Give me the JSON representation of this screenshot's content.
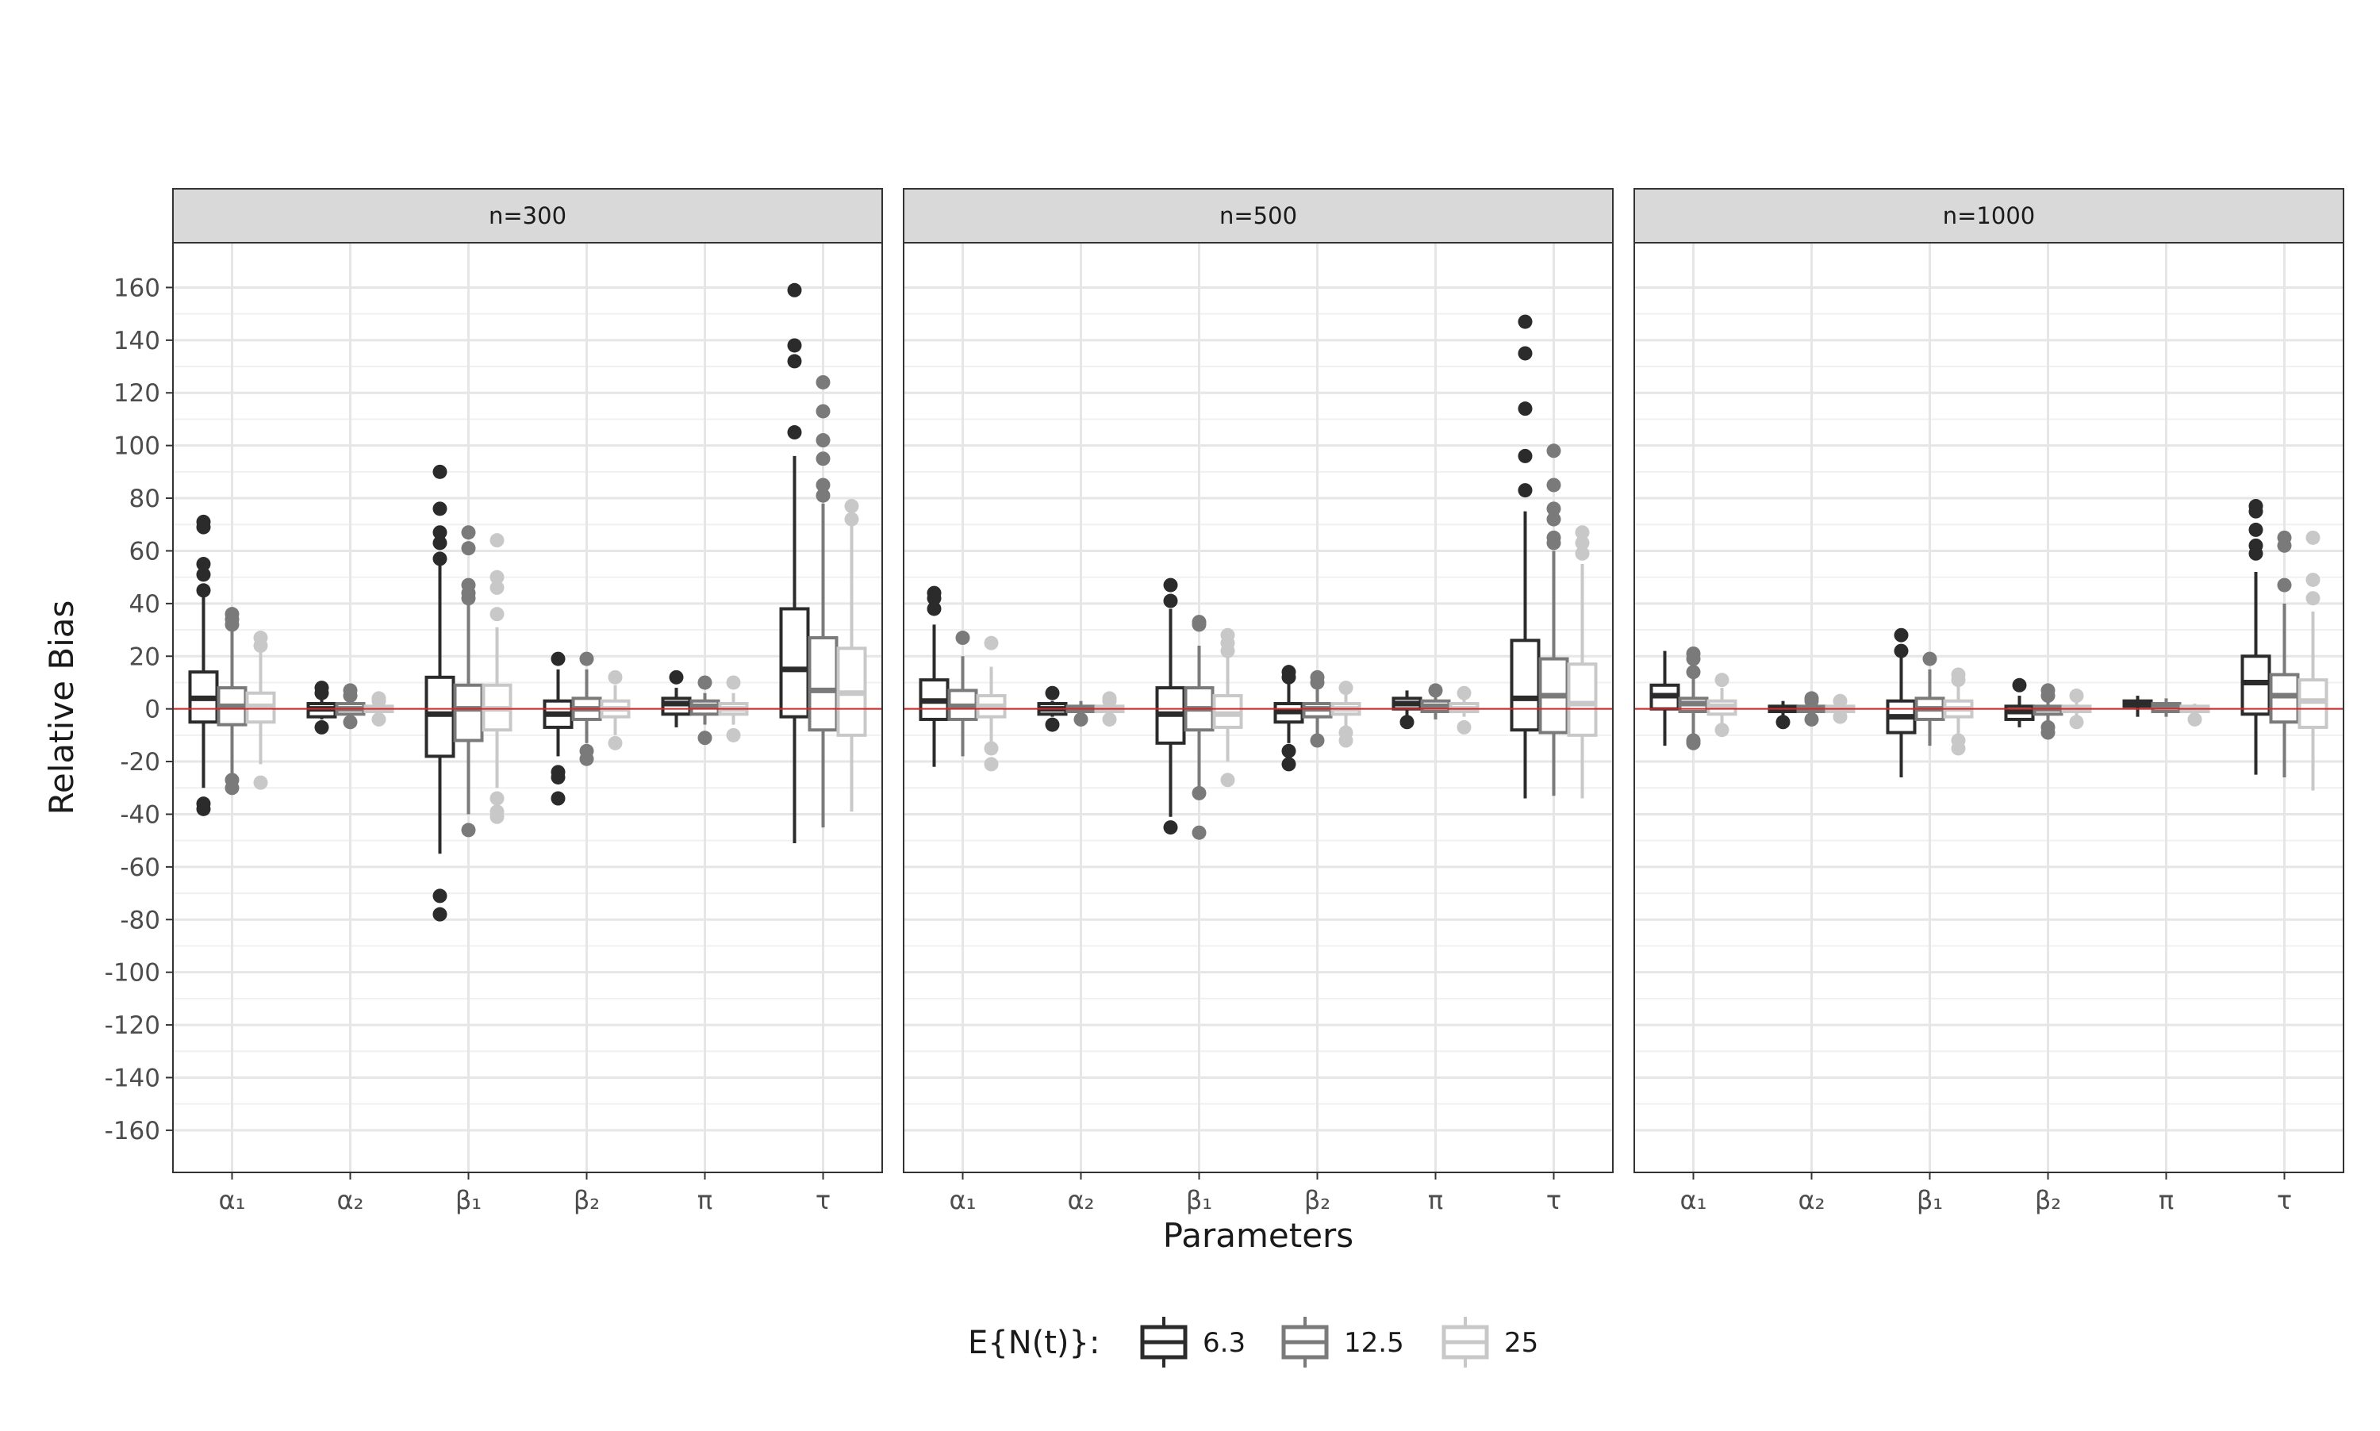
{
  "chart_data": {
    "type": "boxplot",
    "facet_variable": "n",
    "facets": [
      "n=300",
      "n=500",
      "n=1000"
    ],
    "xlabel": "Parameters",
    "ylabel": "Relative Bias",
    "categories": [
      "α₁",
      "α₂",
      "β₁",
      "β₂",
      "π",
      "τ"
    ],
    "ylim": [
      -176,
      177
    ],
    "yticks": [
      -160,
      -140,
      -120,
      -100,
      -80,
      -60,
      -40,
      -20,
      0,
      20,
      40,
      60,
      80,
      100,
      120,
      140,
      160
    ],
    "grid": true,
    "reference_line": {
      "y": 0,
      "color": "#d62728"
    },
    "legend": {
      "title": "E{N(t)}:",
      "position": "bottom",
      "entries": [
        {
          "label": "6.3",
          "color": "#2b2b2b"
        },
        {
          "label": "12.5",
          "color": "#7a7a7a"
        },
        {
          "label": "25",
          "color": "#c8c8c8"
        }
      ]
    },
    "series_order": [
      "6.3",
      "12.5",
      "25"
    ],
    "panels": [
      {
        "facet": "n=300",
        "boxes": [
          {
            "param": "α₁",
            "group": "6.3",
            "min": -30,
            "q1": -5,
            "median": 4,
            "q3": 14,
            "max": 43,
            "outliers": [
              71,
              69,
              55,
              51,
              45,
              -36,
              -38
            ]
          },
          {
            "param": "α₁",
            "group": "12.5",
            "min": -25,
            "q1": -6,
            "median": 1,
            "q3": 8,
            "max": 30,
            "outliers": [
              36,
              34,
              32,
              -27,
              -30
            ]
          },
          {
            "param": "α₁",
            "group": "25",
            "min": -21,
            "q1": -5,
            "median": 1,
            "q3": 6,
            "max": 22,
            "outliers": [
              27,
              24,
              -28
            ]
          },
          {
            "param": "α₂",
            "group": "6.3",
            "min": -4,
            "q1": -3,
            "median": 0,
            "q3": 2,
            "max": 5,
            "outliers": [
              8,
              6,
              -7
            ]
          },
          {
            "param": "α₂",
            "group": "12.5",
            "min": -3,
            "q1": -2,
            "median": 0,
            "q3": 2,
            "max": 4,
            "outliers": [
              7,
              5,
              -5
            ]
          },
          {
            "param": "α₂",
            "group": "25",
            "min": -2,
            "q1": -1,
            "median": 0,
            "q3": 1,
            "max": 2,
            "outliers": [
              4,
              3,
              -4
            ]
          },
          {
            "param": "β₁",
            "group": "6.3",
            "min": -55,
            "q1": -18,
            "median": -2,
            "q3": 12,
            "max": 55,
            "outliers": [
              90,
              76,
              67,
              63,
              57,
              -71,
              -78
            ]
          },
          {
            "param": "β₁",
            "group": "12.5",
            "min": -40,
            "q1": -12,
            "median": 0,
            "q3": 9,
            "max": 40,
            "outliers": [
              67,
              61,
              47,
              44,
              42,
              -46
            ]
          },
          {
            "param": "β₁",
            "group": "25",
            "min": -30,
            "q1": -8,
            "median": 0,
            "q3": 9,
            "max": 31,
            "outliers": [
              64,
              50,
              46,
              36,
              -34,
              -39,
              -41
            ]
          },
          {
            "param": "β₂",
            "group": "6.3",
            "min": -18,
            "q1": -7,
            "median": -2,
            "q3": 3,
            "max": 15,
            "outliers": [
              19,
              -24,
              -26,
              -34
            ]
          },
          {
            "param": "β₂",
            "group": "12.5",
            "min": -13,
            "q1": -4,
            "median": 0,
            "q3": 4,
            "max": 15,
            "outliers": [
              19,
              -16,
              -19
            ]
          },
          {
            "param": "β₂",
            "group": "25",
            "min": -10,
            "q1": -3,
            "median": 0,
            "q3": 3,
            "max": 9,
            "outliers": [
              12,
              -13
            ]
          },
          {
            "param": "π",
            "group": "6.3",
            "min": -7,
            "q1": -2,
            "median": 2,
            "q3": 4,
            "max": 8,
            "outliers": [
              12
            ]
          },
          {
            "param": "π",
            "group": "12.5",
            "min": -6,
            "q1": -2,
            "median": 1,
            "q3": 3,
            "max": 6,
            "outliers": [
              10,
              -11
            ]
          },
          {
            "param": "π",
            "group": "25",
            "min": -6,
            "q1": -2,
            "median": 0,
            "q3": 2,
            "max": 6,
            "outliers": [
              10,
              -10
            ]
          },
          {
            "param": "τ",
            "group": "6.3",
            "min": -51,
            "q1": -3,
            "median": 15,
            "q3": 38,
            "max": 96,
            "outliers": [
              159,
              138,
              132,
              105
            ]
          },
          {
            "param": "τ",
            "group": "12.5",
            "min": -45,
            "q1": -8,
            "median": 7,
            "q3": 27,
            "max": 78,
            "outliers": [
              124,
              113,
              102,
              95,
              85,
              81
            ]
          },
          {
            "param": "τ",
            "group": "25",
            "min": -39,
            "q1": -10,
            "median": 6,
            "q3": 23,
            "max": 70,
            "outliers": [
              77,
              72
            ]
          }
        ]
      },
      {
        "facet": "n=500",
        "boxes": [
          {
            "param": "α₁",
            "group": "6.3",
            "min": -22,
            "q1": -4,
            "median": 3,
            "q3": 11,
            "max": 32,
            "outliers": [
              44,
              42,
              38
            ]
          },
          {
            "param": "α₁",
            "group": "12.5",
            "min": -18,
            "q1": -4,
            "median": 1,
            "q3": 7,
            "max": 20,
            "outliers": [
              27
            ]
          },
          {
            "param": "α₁",
            "group": "25",
            "min": -13,
            "q1": -3,
            "median": 1,
            "q3": 5,
            "max": 16,
            "outliers": [
              25,
              -15,
              -21
            ]
          },
          {
            "param": "α₂",
            "group": "6.3",
            "min": -3,
            "q1": -2,
            "median": 0,
            "q3": 2,
            "max": 3,
            "outliers": [
              6,
              -6
            ]
          },
          {
            "param": "α₂",
            "group": "12.5",
            "min": -3,
            "q1": -1,
            "median": 0,
            "q3": 1,
            "max": 3,
            "outliers": [
              -4
            ]
          },
          {
            "param": "α₂",
            "group": "25",
            "min": -2,
            "q1": -1,
            "median": 0,
            "q3": 1,
            "max": 2,
            "outliers": [
              4,
              3,
              -4
            ]
          },
          {
            "param": "β₁",
            "group": "6.3",
            "min": -41,
            "q1": -13,
            "median": -2,
            "q3": 8,
            "max": 38,
            "outliers": [
              47,
              41,
              -45
            ]
          },
          {
            "param": "β₁",
            "group": "12.5",
            "min": -30,
            "q1": -8,
            "median": 0,
            "q3": 8,
            "max": 24,
            "outliers": [
              33,
              32,
              -32,
              -47
            ]
          },
          {
            "param": "β₁",
            "group": "25",
            "min": -20,
            "q1": -7,
            "median": -2,
            "q3": 5,
            "max": 20,
            "outliers": [
              28,
              25,
              22,
              -27
            ]
          },
          {
            "param": "β₂",
            "group": "6.3",
            "min": -13,
            "q1": -5,
            "median": -1,
            "q3": 2,
            "max": 10,
            "outliers": [
              14,
              12,
              -16,
              -21
            ]
          },
          {
            "param": "β₂",
            "group": "12.5",
            "min": -10,
            "q1": -3,
            "median": 0,
            "q3": 2,
            "max": 9,
            "outliers": [
              12,
              10,
              -12
            ]
          },
          {
            "param": "β₂",
            "group": "25",
            "min": -8,
            "q1": -2,
            "median": 0,
            "q3": 2,
            "max": 6,
            "outliers": [
              8,
              -9,
              -12
            ]
          },
          {
            "param": "π",
            "group": "6.3",
            "min": -4,
            "q1": 0,
            "median": 2,
            "q3": 4,
            "max": 7,
            "outliers": [
              -5
            ]
          },
          {
            "param": "π",
            "group": "12.5",
            "min": -4,
            "q1": -1,
            "median": 1,
            "q3": 3,
            "max": 5,
            "outliers": [
              7
            ]
          },
          {
            "param": "π",
            "group": "25",
            "min": -3,
            "q1": -1,
            "median": 0,
            "q3": 2,
            "max": 4,
            "outliers": [
              6,
              -7
            ]
          },
          {
            "param": "τ",
            "group": "6.3",
            "min": -34,
            "q1": -8,
            "median": 4,
            "q3": 26,
            "max": 75,
            "outliers": [
              147,
              135,
              114,
              96,
              83
            ]
          },
          {
            "param": "τ",
            "group": "12.5",
            "min": -33,
            "q1": -9,
            "median": 5,
            "q3": 19,
            "max": 60,
            "outliers": [
              98,
              85,
              76,
              72,
              65,
              63
            ]
          },
          {
            "param": "τ",
            "group": "25",
            "min": -34,
            "q1": -10,
            "median": 2,
            "q3": 17,
            "max": 55,
            "outliers": [
              67,
              63,
              59
            ]
          }
        ]
      },
      {
        "facet": "n=1000",
        "boxes": [
          {
            "param": "α₁",
            "group": "6.3",
            "min": -14,
            "q1": 0,
            "median": 5,
            "q3": 9,
            "max": 22,
            "outliers": []
          },
          {
            "param": "α₁",
            "group": "12.5",
            "min": -10,
            "q1": -1,
            "median": 2,
            "q3": 4,
            "max": 13,
            "outliers": [
              21,
              19,
              14,
              -12,
              -13
            ]
          },
          {
            "param": "α₁",
            "group": "25",
            "min": -6,
            "q1": -2,
            "median": 1,
            "q3": 3,
            "max": 8,
            "outliers": [
              11,
              -8
            ]
          },
          {
            "param": "α₂",
            "group": "6.3",
            "min": -3,
            "q1": -1,
            "median": 0,
            "q3": 1,
            "max": 3,
            "outliers": [
              -5
            ]
          },
          {
            "param": "α₂",
            "group": "12.5",
            "min": -3,
            "q1": -1,
            "median": 0,
            "q3": 1,
            "max": 2,
            "outliers": [
              4,
              3,
              -4
            ]
          },
          {
            "param": "α₂",
            "group": "25",
            "min": -2,
            "q1": -1,
            "median": 0,
            "q3": 1,
            "max": 2,
            "outliers": [
              3,
              -3
            ]
          },
          {
            "param": "β₁",
            "group": "6.3",
            "min": -26,
            "q1": -9,
            "median": -3,
            "q3": 3,
            "max": 20,
            "outliers": [
              28,
              22
            ]
          },
          {
            "param": "β₁",
            "group": "12.5",
            "min": -14,
            "q1": -4,
            "median": 0,
            "q3": 4,
            "max": 15,
            "outliers": [
              19
            ]
          },
          {
            "param": "β₁",
            "group": "25",
            "min": -10,
            "q1": -3,
            "median": 0,
            "q3": 3,
            "max": 9,
            "outliers": [
              13,
              11,
              -12,
              -15
            ]
          },
          {
            "param": "β₂",
            "group": "6.3",
            "min": -7,
            "q1": -4,
            "median": -1,
            "q3": 1,
            "max": 5,
            "outliers": [
              9
            ]
          },
          {
            "param": "β₂",
            "group": "12.5",
            "min": -6,
            "q1": -2,
            "median": 0,
            "q3": 1,
            "max": 4,
            "outliers": [
              7,
              5,
              -7,
              -9
            ]
          },
          {
            "param": "β₂",
            "group": "25",
            "min": -4,
            "q1": -1,
            "median": 0,
            "q3": 1,
            "max": 3,
            "outliers": [
              5,
              -5
            ]
          },
          {
            "param": "π",
            "group": "6.3",
            "min": -3,
            "q1": 1,
            "median": 2,
            "q3": 3,
            "max": 5,
            "outliers": []
          },
          {
            "param": "π",
            "group": "12.5",
            "min": -3,
            "q1": -1,
            "median": 1,
            "q3": 2,
            "max": 4,
            "outliers": []
          },
          {
            "param": "π",
            "group": "25",
            "min": -2,
            "q1": -1,
            "median": 0,
            "q3": 1,
            "max": 2,
            "outliers": [
              -4
            ]
          },
          {
            "param": "τ",
            "group": "6.3",
            "min": -25,
            "q1": -2,
            "median": 10,
            "q3": 20,
            "max": 52,
            "outliers": [
              77,
              75,
              68,
              62,
              59
            ]
          },
          {
            "param": "τ",
            "group": "12.5",
            "min": -26,
            "q1": -5,
            "median": 5,
            "q3": 13,
            "max": 40,
            "outliers": [
              65,
              62,
              47
            ]
          },
          {
            "param": "τ",
            "group": "25",
            "min": -31,
            "q1": -7,
            "median": 3,
            "q3": 11,
            "max": 37,
            "outliers": [
              65,
              49,
              42
            ]
          }
        ]
      }
    ]
  }
}
